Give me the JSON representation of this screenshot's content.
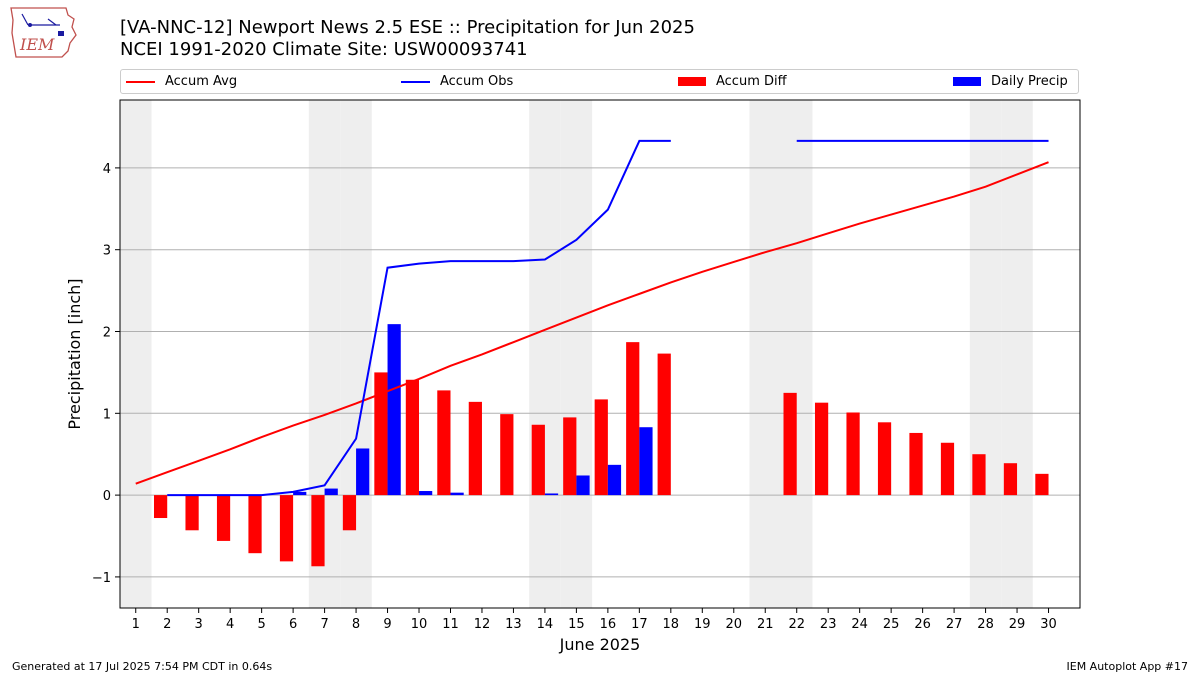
{
  "title_line1": "[VA-NNC-12] Newport News 2.5 ESE :: Precipitation for Jun 2025",
  "title_line2": "NCEI 1991-2020 Climate Site: USW00093741",
  "logo_text": "IEM",
  "legend": {
    "accum_avg": "Accum Avg",
    "accum_obs": "Accum Obs",
    "accum_diff": "Accum Diff",
    "daily_precip": "Daily Precip"
  },
  "colors": {
    "avg": "#ff0000",
    "obs": "#0000ff",
    "diff": "#ff0000",
    "precip": "#0000ff",
    "weekend": "#eeeeee",
    "grid": "#b0b0b0"
  },
  "footer": {
    "generated": "Generated at 17 Jul 2025 7:54 PM CDT in 0.64s",
    "app": "IEM Autoplot App #17"
  },
  "chart_data": {
    "type": "bar",
    "xlabel": "June 2025",
    "ylabel": "Precipitation [inch]",
    "xlim": [
      0.5,
      31.0
    ],
    "ylim": [
      -1.38,
      4.83
    ],
    "yticks": [
      -1,
      0,
      1,
      2,
      3,
      4
    ],
    "ytick_labels": [
      "−1",
      "0",
      "1",
      "2",
      "3",
      "4"
    ],
    "grid": "horizontal",
    "legend_position": "top",
    "days": [
      1,
      2,
      3,
      4,
      5,
      6,
      7,
      8,
      9,
      10,
      11,
      12,
      13,
      14,
      15,
      16,
      17,
      18,
      19,
      20,
      21,
      22,
      23,
      24,
      25,
      26,
      27,
      28,
      29,
      30
    ],
    "weekend_days": [
      1,
      7,
      8,
      14,
      15,
      21,
      22,
      28,
      29
    ],
    "series": [
      {
        "name": "Accum Avg",
        "kind": "line",
        "x": [
          1,
          2,
          3,
          4,
          5,
          6,
          7,
          8,
          9,
          10,
          11,
          12,
          13,
          14,
          15,
          16,
          17,
          18,
          19,
          20,
          21,
          22,
          23,
          24,
          25,
          26,
          27,
          28,
          29,
          30
        ],
        "values": [
          0.14,
          0.28,
          0.42,
          0.56,
          0.71,
          0.85,
          0.98,
          1.12,
          1.27,
          1.42,
          1.58,
          1.72,
          1.87,
          2.02,
          2.17,
          2.32,
          2.46,
          2.6,
          2.73,
          2.85,
          2.97,
          3.08,
          3.2,
          3.32,
          3.43,
          3.54,
          3.65,
          3.77,
          3.92,
          4.07
        ]
      },
      {
        "name": "Accum Obs",
        "kind": "line",
        "segments": [
          {
            "x": [
              2,
              3,
              4,
              5,
              6,
              7,
              8,
              9,
              10,
              11,
              12,
              13,
              14,
              15,
              16,
              17,
              18
            ],
            "values": [
              0.0,
              0.0,
              0.0,
              0.0,
              0.04,
              0.12,
              0.69,
              2.78,
              2.83,
              2.86,
              2.86,
              2.86,
              2.88,
              3.12,
              3.49,
              4.33,
              4.33
            ]
          },
          {
            "x": [
              22,
              23,
              24,
              25,
              26,
              27,
              28,
              29,
              30
            ],
            "values": [
              4.33,
              4.33,
              4.33,
              4.33,
              4.33,
              4.33,
              4.33,
              4.33,
              4.33
            ]
          }
        ]
      },
      {
        "name": "Accum Diff",
        "kind": "bar",
        "x": [
          2,
          3,
          4,
          5,
          6,
          7,
          8,
          9,
          10,
          11,
          12,
          13,
          14,
          15,
          16,
          17,
          18,
          22,
          23,
          24,
          25,
          26,
          27,
          28,
          29,
          30
        ],
        "values": [
          -0.28,
          -0.43,
          -0.56,
          -0.71,
          -0.81,
          -0.87,
          -0.43,
          1.5,
          1.41,
          1.28,
          1.14,
          0.99,
          0.86,
          0.95,
          1.17,
          1.87,
          1.73,
          1.25,
          1.13,
          1.01,
          0.89,
          0.76,
          0.64,
          0.5,
          0.39,
          0.26
        ]
      },
      {
        "name": "Daily Precip",
        "kind": "bar",
        "x": [
          6,
          7,
          8,
          9,
          10,
          11,
          14,
          15,
          16,
          17
        ],
        "values": [
          0.04,
          0.08,
          0.57,
          2.09,
          0.05,
          0.03,
          0.02,
          0.24,
          0.37,
          0.83
        ]
      }
    ]
  }
}
